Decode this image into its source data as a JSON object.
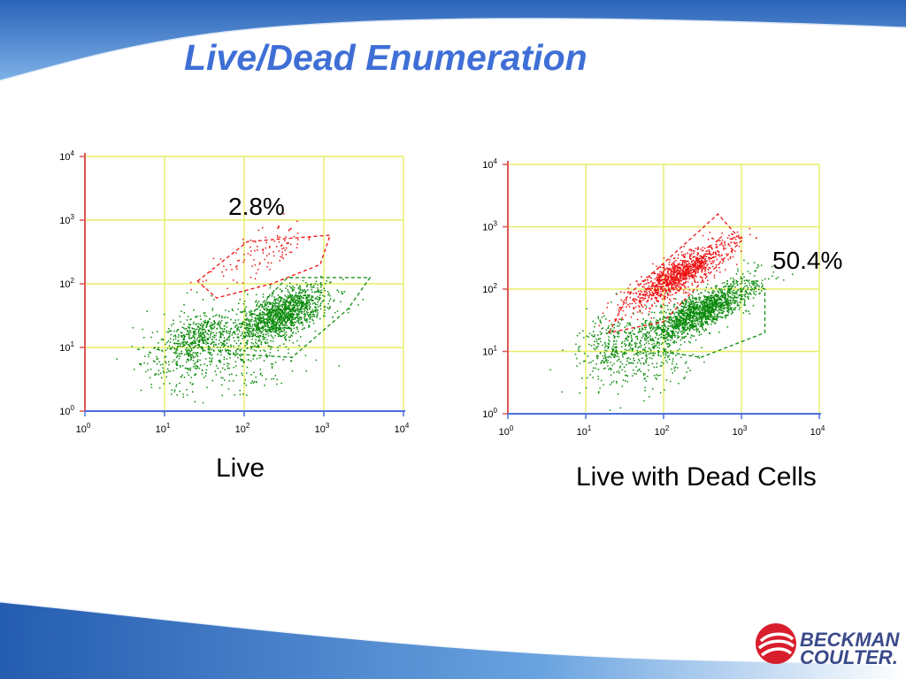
{
  "slide": {
    "title": "Live/Dead Enumeration"
  },
  "logo": {
    "line1": "BECKMAN",
    "line2": "COULTER."
  },
  "colors": {
    "title": "#3f6fd6",
    "live_population": "#0a8a0a",
    "dead_population": "#ee1111",
    "grid": "#e6ee66",
    "y_axis": "#e05555",
    "x_axis": "#4a6fe0"
  },
  "chart_data": [
    {
      "type": "scatter",
      "caption": "Live",
      "annotation": "2.8%",
      "x_scale": "log",
      "y_scale": "log",
      "xlim": [
        1,
        10000
      ],
      "ylim": [
        1,
        10000
      ],
      "x_tick_labels": [
        {
          "base": "10",
          "exp": "0"
        },
        {
          "base": "10",
          "exp": "1"
        },
        {
          "base": "10",
          "exp": "2"
        },
        {
          "base": "10",
          "exp": "3"
        },
        {
          "base": "10",
          "exp": "4"
        }
      ],
      "y_tick_labels": [
        {
          "base": "10",
          "exp": "0"
        },
        {
          "base": "10",
          "exp": "1"
        },
        {
          "base": "10",
          "exp": "2"
        },
        {
          "base": "10",
          "exp": "3"
        },
        {
          "base": "10",
          "exp": "4"
        }
      ],
      "grid": true,
      "populations": [
        {
          "color_role": "live",
          "center": [
            300,
            35
          ],
          "spread_log": [
            0.28,
            0.17
          ],
          "n": 1400,
          "tilt": 0.45
        },
        {
          "color_role": "live",
          "center": [
            30,
            16
          ],
          "spread_log": [
            0.18,
            0.14
          ],
          "n": 260,
          "tilt": 0.5
        },
        {
          "color_role": "live",
          "center": [
            20,
            10
          ],
          "spread_log": [
            0.3,
            0.3
          ],
          "n": 420,
          "tilt": 0.3
        },
        {
          "color_role": "live",
          "center": [
            120,
            8
          ],
          "spread_log": [
            0.35,
            0.3
          ],
          "n": 220,
          "tilt": 0.2
        },
        {
          "color_role": "dead",
          "center": [
            180,
            300
          ],
          "spread_log": [
            0.35,
            0.18
          ],
          "n": 110,
          "tilt": 0.5
        }
      ],
      "gates": [
        {
          "color_role": "dead",
          "points": [
            [
              26,
              110
            ],
            [
              110,
              460
            ],
            [
              1200,
              580
            ],
            [
              900,
              200
            ],
            [
              220,
              100
            ],
            [
              45,
              60
            ]
          ]
        },
        {
          "color_role": "live",
          "points": [
            [
              55,
              12
            ],
            [
              350,
              125
            ],
            [
              3800,
              125
            ],
            [
              2000,
              40
            ],
            [
              400,
              7
            ],
            [
              60,
              8
            ]
          ]
        }
      ]
    },
    {
      "type": "scatter",
      "caption": "Live with Dead Cells",
      "annotation": "50.4%",
      "x_scale": "log",
      "y_scale": "log",
      "xlim": [
        1,
        10000
      ],
      "ylim": [
        1,
        10000
      ],
      "x_tick_labels": [
        {
          "base": "10",
          "exp": "0"
        },
        {
          "base": "10",
          "exp": "1"
        },
        {
          "base": "10",
          "exp": "2"
        },
        {
          "base": "10",
          "exp": "3"
        },
        {
          "base": "10",
          "exp": "4"
        }
      ],
      "y_tick_labels": [
        {
          "base": "10",
          "exp": "0"
        },
        {
          "base": "10",
          "exp": "1"
        },
        {
          "base": "10",
          "exp": "2"
        },
        {
          "base": "10",
          "exp": "3"
        },
        {
          "base": "10",
          "exp": "4"
        }
      ],
      "grid": true,
      "populations": [
        {
          "color_role": "dead",
          "center": [
            150,
            170
          ],
          "spread_log": [
            0.32,
            0.14
          ],
          "n": 1200,
          "tilt": 0.7
        },
        {
          "color_role": "live",
          "center": [
            300,
            45
          ],
          "spread_log": [
            0.34,
            0.15
          ],
          "n": 1500,
          "tilt": 0.55
        },
        {
          "color_role": "live",
          "center": [
            60,
            10
          ],
          "spread_log": [
            0.35,
            0.3
          ],
          "n": 380,
          "tilt": 0.3
        },
        {
          "color_role": "live",
          "center": [
            20,
            14
          ],
          "spread_log": [
            0.2,
            0.25
          ],
          "n": 200,
          "tilt": 0.3
        }
      ],
      "gates": [
        {
          "color_role": "dead",
          "points": [
            [
              20,
              20
            ],
            [
              35,
              80
            ],
            [
              500,
              1600
            ],
            [
              1000,
              600
            ],
            [
              100,
              30
            ]
          ]
        },
        {
          "color_role": "live",
          "points": [
            [
              100,
              10
            ],
            [
              1000,
              150
            ],
            [
              2000,
              100
            ],
            [
              2000,
              20
            ],
            [
              300,
              8
            ]
          ]
        }
      ]
    }
  ]
}
